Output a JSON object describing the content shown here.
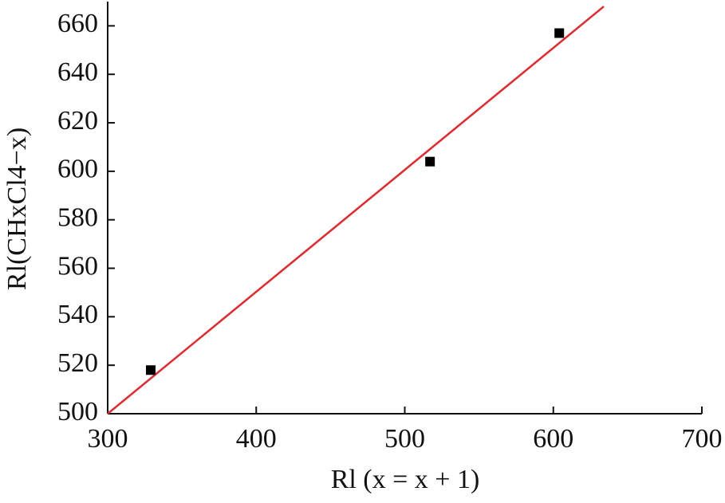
{
  "chart_data": {
    "type": "scatter",
    "xlabel": "Rl (x = x + 1)",
    "ylabel": "Rl(CHxCl4−x)",
    "series": [
      {
        "x": [
          329,
          517,
          604
        ],
        "values": [
          518,
          604,
          657
        ],
        "color": "#000000",
        "marker": "square"
      }
    ],
    "fit": {
      "x": [
        300,
        634
      ],
      "values": [
        500,
        668
      ],
      "color": "#e8262b"
    },
    "xlim": [
      300,
      700
    ],
    "xticks": [
      300,
      400,
      500,
      600,
      700
    ],
    "ylim": [
      500,
      670
    ],
    "yticks": [
      500,
      520,
      540,
      560,
      580,
      600,
      620,
      640,
      660
    ],
    "grid": false
  }
}
